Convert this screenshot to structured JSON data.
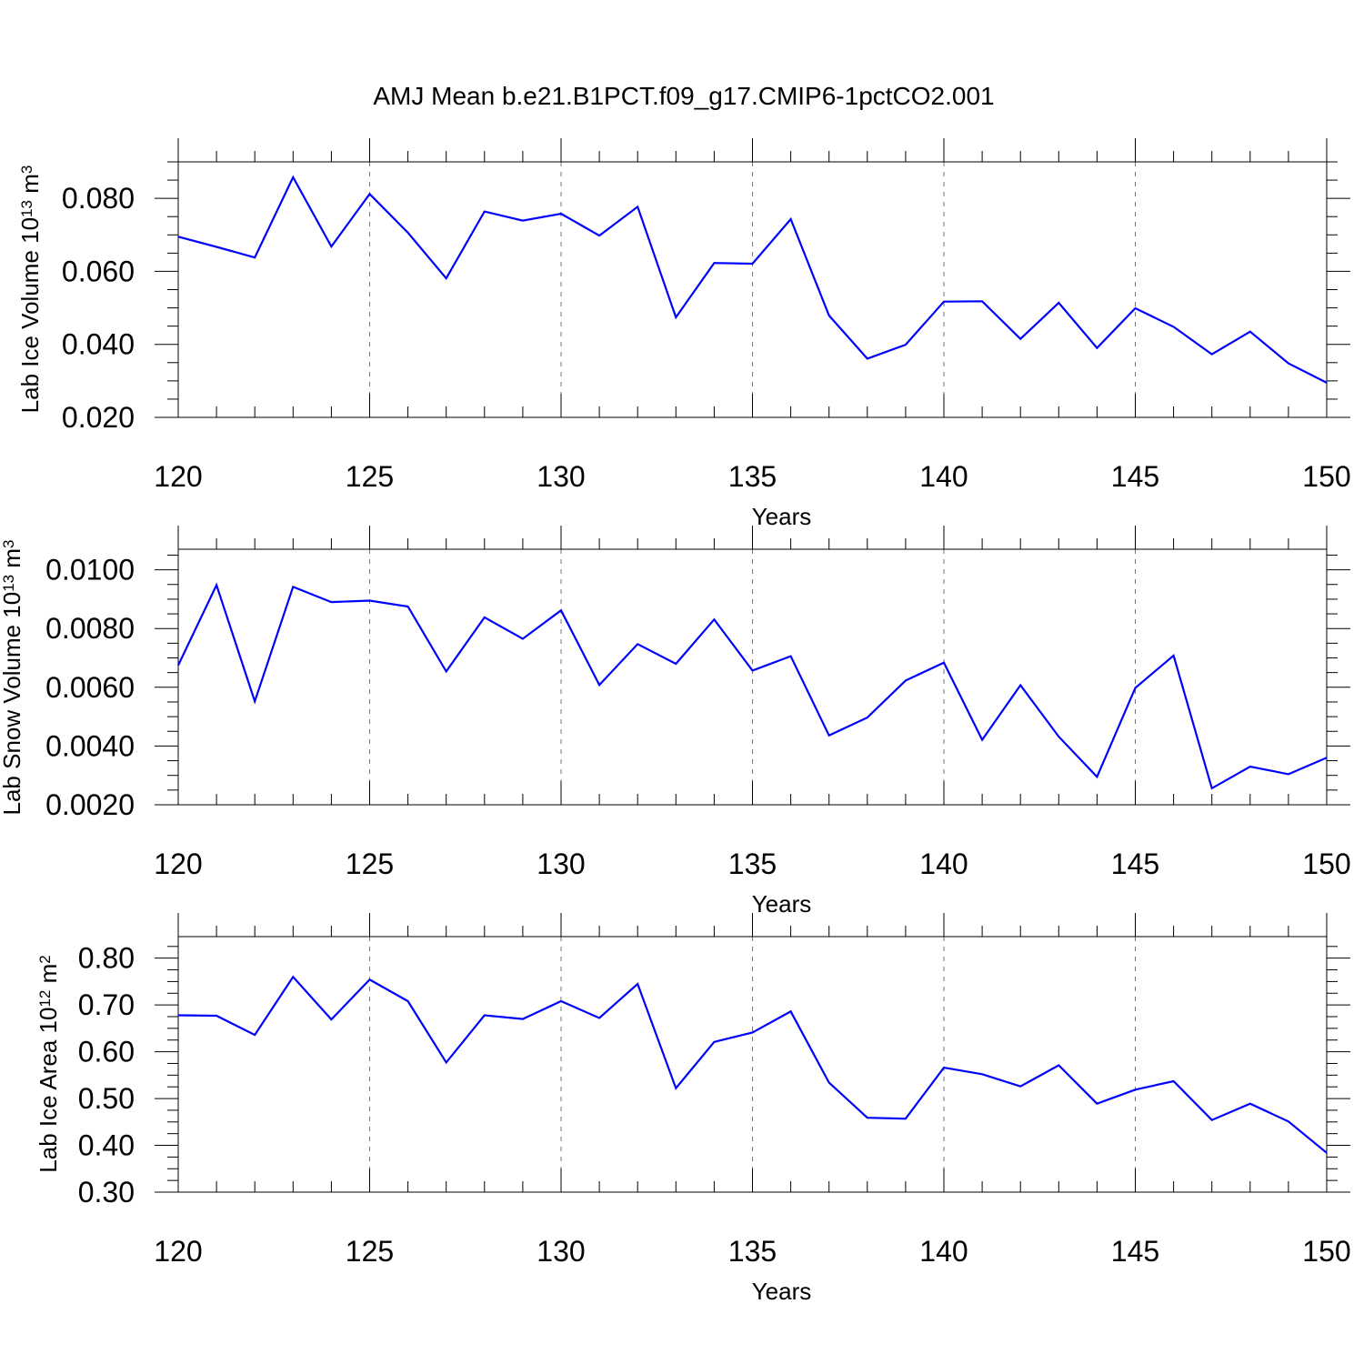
{
  "chart_data": [
    {
      "type": "line",
      "title": "AMJ Mean b.e21.B1PCT.f09_g17.CMIP6-1pctCO2.001",
      "xlabel": "Years",
      "ylabel": "Lab Ice Volume 10",
      "ylabel_exp": "13",
      "ylabel_unit": " m",
      "ylabel_unit_exp": "3",
      "xlim": [
        120,
        150
      ],
      "ylim": [
        0.02,
        0.09
      ],
      "xticks": [
        120,
        125,
        130,
        135,
        140,
        145,
        150
      ],
      "xtick_labels": [
        "120",
        "125",
        "130",
        "135",
        "140",
        "145",
        "150"
      ],
      "yticks": [
        0.02,
        0.04,
        0.06,
        0.08
      ],
      "ytick_labels": [
        "0.020",
        "0.040",
        "0.060",
        "0.080"
      ],
      "x": [
        120,
        121,
        122,
        123,
        124,
        125,
        126,
        127,
        128,
        129,
        130,
        131,
        132,
        133,
        134,
        135,
        136,
        137,
        138,
        139,
        140,
        141,
        142,
        143,
        144,
        145,
        146,
        147,
        148,
        149,
        150
      ],
      "series": [
        {
          "values": [
            0.0695,
            0.0667,
            0.0638,
            0.0858,
            0.0668,
            0.0812,
            0.0706,
            0.0581,
            0.0764,
            0.0739,
            0.0758,
            0.0698,
            0.0777,
            0.0474,
            0.0623,
            0.0621,
            0.0743,
            0.0479,
            0.0361,
            0.0399,
            0.0517,
            0.0518,
            0.0415,
            0.0514,
            0.039,
            0.0499,
            0.0448,
            0.0373,
            0.0435,
            0.0348,
            0.0295
          ],
          "color": "#0000ff"
        }
      ],
      "grid": "vertical dashed at major x ticks"
    },
    {
      "type": "line",
      "xlabel": "Years",
      "ylabel": "Lab Snow Volume 10",
      "ylabel_exp": "13",
      "ylabel_unit": " m",
      "ylabel_unit_exp": "3",
      "xlim": [
        120,
        150
      ],
      "ylim": [
        0.002,
        0.0107
      ],
      "xticks": [
        120,
        125,
        130,
        135,
        140,
        145,
        150
      ],
      "xtick_labels": [
        "120",
        "125",
        "130",
        "135",
        "140",
        "145",
        "150"
      ],
      "yticks": [
        0.002,
        0.004,
        0.006,
        0.008,
        0.01
      ],
      "ytick_labels": [
        "0.0020",
        "0.0040",
        "0.0060",
        "0.0080",
        "0.0100"
      ],
      "x": [
        120,
        121,
        122,
        123,
        124,
        125,
        126,
        127,
        128,
        129,
        130,
        131,
        132,
        133,
        134,
        135,
        136,
        137,
        138,
        139,
        140,
        141,
        142,
        143,
        144,
        145,
        146,
        147,
        148,
        149,
        150
      ],
      "series": [
        {
          "values": [
            0.00675,
            0.00948,
            0.00552,
            0.00942,
            0.0089,
            0.00895,
            0.00875,
            0.00654,
            0.00838,
            0.00765,
            0.00862,
            0.00608,
            0.00747,
            0.0068,
            0.00831,
            0.00657,
            0.00706,
            0.00436,
            0.00497,
            0.00623,
            0.00684,
            0.00421,
            0.00607,
            0.00432,
            0.00295,
            0.00598,
            0.00708,
            0.00256,
            0.0033,
            0.00304,
            0.0036
          ],
          "color": "#0000ff"
        }
      ],
      "grid": "vertical dashed at major x ticks"
    },
    {
      "type": "line",
      "xlabel": "Years",
      "ylabel": "Lab Ice Area 10",
      "ylabel_exp": "12",
      "ylabel_unit": " m",
      "ylabel_unit_exp": "2",
      "xlim": [
        120,
        150
      ],
      "ylim": [
        0.3,
        0.846
      ],
      "xticks": [
        120,
        125,
        130,
        135,
        140,
        145,
        150
      ],
      "xtick_labels": [
        "120",
        "125",
        "130",
        "135",
        "140",
        "145",
        "150"
      ],
      "yticks": [
        0.3,
        0.4,
        0.5,
        0.6,
        0.7,
        0.8
      ],
      "ytick_labels": [
        "0.30",
        "0.40",
        "0.50",
        "0.60",
        "0.70",
        "0.80"
      ],
      "x": [
        120,
        121,
        122,
        123,
        124,
        125,
        126,
        127,
        128,
        129,
        130,
        131,
        132,
        133,
        134,
        135,
        136,
        137,
        138,
        139,
        140,
        141,
        142,
        143,
        144,
        145,
        146,
        147,
        148,
        149,
        150
      ],
      "series": [
        {
          "values": [
            0.678,
            0.677,
            0.636,
            0.76,
            0.669,
            0.754,
            0.708,
            0.577,
            0.678,
            0.67,
            0.708,
            0.672,
            0.745,
            0.522,
            0.621,
            0.641,
            0.686,
            0.534,
            0.459,
            0.457,
            0.566,
            0.552,
            0.526,
            0.571,
            0.489,
            0.519,
            0.537,
            0.454,
            0.489,
            0.451,
            0.384
          ],
          "color": "#0000ff"
        }
      ],
      "grid": "vertical dashed at major x ticks"
    }
  ]
}
